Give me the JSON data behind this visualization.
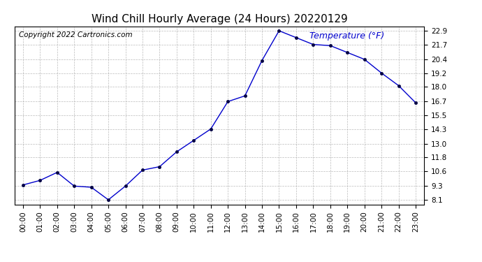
{
  "title": "Wind Chill Hourly Average (24 Hours) 20220129",
  "copyright_text": "Copyright 2022 Cartronics.com",
  "ylabel_text": "Temperature (°F)",
  "hours": [
    "00:00",
    "01:00",
    "02:00",
    "03:00",
    "04:00",
    "05:00",
    "06:00",
    "07:00",
    "08:00",
    "09:00",
    "10:00",
    "11:00",
    "12:00",
    "13:00",
    "14:00",
    "15:00",
    "16:00",
    "17:00",
    "18:00",
    "19:00",
    "20:00",
    "21:00",
    "22:00",
    "23:00"
  ],
  "values": [
    9.4,
    9.8,
    10.5,
    9.3,
    9.2,
    8.1,
    9.3,
    10.7,
    11.0,
    12.3,
    13.3,
    14.3,
    16.7,
    17.2,
    20.3,
    22.9,
    22.3,
    21.7,
    21.6,
    21.0,
    20.4,
    19.2,
    18.1,
    16.6
  ],
  "line_color": "#0000cc",
  "marker_color": "#000044",
  "background_color": "#ffffff",
  "plot_bg_color": "#ffffff",
  "grid_color": "#aaaaaa",
  "title_color": "#000000",
  "ylabel_color": "#0000cc",
  "copyright_color": "#000000",
  "ylim_min": 7.7,
  "ylim_max": 23.3,
  "yticks": [
    8.1,
    9.3,
    10.6,
    11.8,
    13.0,
    14.3,
    15.5,
    16.7,
    18.0,
    19.2,
    20.4,
    21.7,
    22.9
  ],
  "title_fontsize": 11,
  "ylabel_fontsize": 9,
  "tick_fontsize": 7.5,
  "copyright_fontsize": 7.5
}
